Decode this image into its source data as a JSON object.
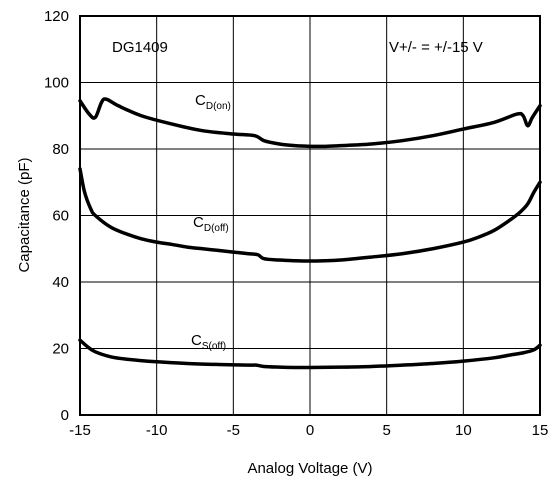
{
  "chart_data": {
    "type": "line",
    "xlabel": "Analog Voltage (V)",
    "ylabel": "Capacitance (pF)",
    "xlim": [
      -15,
      15
    ],
    "ylim": [
      0,
      120
    ],
    "xticks": [
      -15,
      -10,
      -5,
      0,
      5,
      10,
      15
    ],
    "yticks": [
      0,
      20,
      40,
      60,
      80,
      100,
      120
    ],
    "grid": true,
    "annotations": [
      {
        "text": "DG1409"
      },
      {
        "text": "V+/- = +/-15 V"
      }
    ],
    "series": [
      {
        "name": "CD(on)",
        "label_main": "C",
        "label_sub": "D(on)",
        "x": [
          -15,
          -14.4,
          -14,
          -13.6,
          -13.3,
          -12.5,
          -11,
          -9,
          -7,
          -5,
          -3.6,
          -3,
          -2,
          -1,
          0,
          1,
          2,
          4,
          6,
          8,
          10,
          12,
          13.5,
          13.9,
          14.2,
          14.5,
          15
        ],
        "y": [
          94.5,
          90.5,
          89.5,
          94,
          95,
          93,
          90,
          87.5,
          85.5,
          84.5,
          84,
          82.5,
          81.5,
          81,
          80.8,
          80.8,
          81,
          81.5,
          82.5,
          84,
          86,
          88,
          90.5,
          90,
          87,
          89.5,
          93
        ]
      },
      {
        "name": "CD(off)",
        "label_main": "C",
        "label_sub": "D(off)",
        "x": [
          -15,
          -14.7,
          -14.3,
          -14,
          -13,
          -12,
          -11,
          -10,
          -9,
          -8,
          -7,
          -6,
          -5,
          -4,
          -3.4,
          -3,
          -2,
          -1,
          0,
          1,
          2,
          4,
          6,
          8,
          10,
          11,
          12,
          13,
          13.7,
          14.2,
          14.6,
          15
        ],
        "y": [
          74,
          67,
          62,
          60,
          56.5,
          54.5,
          53,
          52,
          51.3,
          50.5,
          50,
          49.5,
          49,
          48.5,
          48.2,
          47,
          46.6,
          46.4,
          46.3,
          46.4,
          46.6,
          47.5,
          48.5,
          50,
          52,
          53.5,
          55.5,
          58.5,
          61,
          63.5,
          67,
          70
        ]
      },
      {
        "name": "CS(off)",
        "label_main": "C",
        "label_sub": "S(off)",
        "x": [
          -15,
          -14.5,
          -14,
          -13,
          -12,
          -10,
          -8,
          -6,
          -4,
          -3.5,
          -3,
          -2,
          -1,
          0,
          2,
          4,
          6,
          8,
          10,
          12,
          13,
          14,
          14.6,
          15
        ],
        "y": [
          22.5,
          20.5,
          19,
          17.5,
          16.8,
          16,
          15.5,
          15.2,
          15,
          15,
          14.6,
          14.4,
          14.3,
          14.3,
          14.4,
          14.6,
          15,
          15.5,
          16.2,
          17.2,
          18,
          18.8,
          19.6,
          21
        ]
      }
    ]
  }
}
